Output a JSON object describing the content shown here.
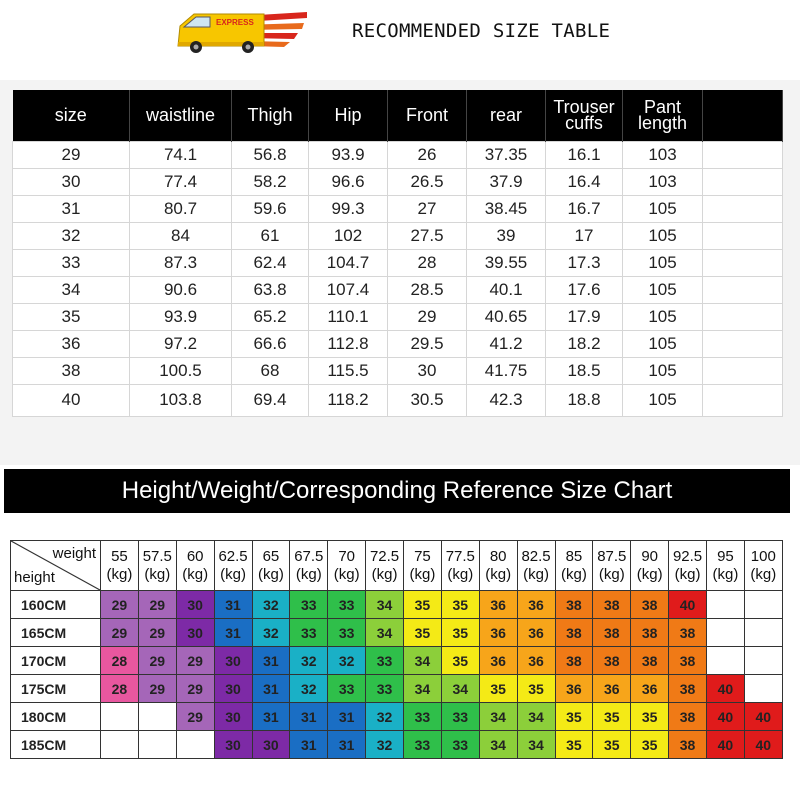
{
  "header": {
    "title": "RECOMMENDED SIZE TABLE",
    "truck_badge": "EXPRESS"
  },
  "size_table": {
    "columns": [
      "size",
      "waistline",
      "Thigh",
      "Hip",
      "Front",
      "rear",
      "Trouser cuffs",
      "Pant length"
    ],
    "rows": [
      [
        "29",
        "74.1",
        "56.8",
        "93.9",
        "26",
        "37.35",
        "16.1",
        "103"
      ],
      [
        "30",
        "77.4",
        "58.2",
        "96.6",
        "26.5",
        "37.9",
        "16.4",
        "103"
      ],
      [
        "31",
        "80.7",
        "59.6",
        "99.3",
        "27",
        "38.45",
        "16.7",
        "105"
      ],
      [
        "32",
        "84",
        "61",
        "102",
        "27.5",
        "39",
        "17",
        "105"
      ],
      [
        "33",
        "87.3",
        "62.4",
        "104.7",
        "28",
        "39.55",
        "17.3",
        "105"
      ],
      [
        "34",
        "90.6",
        "63.8",
        "107.4",
        "28.5",
        "40.1",
        "17.6",
        "105"
      ],
      [
        "35",
        "93.9",
        "65.2",
        "110.1",
        "29",
        "40.65",
        "17.9",
        "105"
      ],
      [
        "36",
        "97.2",
        "66.6",
        "112.8",
        "29.5",
        "41.2",
        "18.2",
        "105"
      ],
      [
        "38",
        "100.5",
        "68",
        "115.5",
        "30",
        "41.75",
        "18.5",
        "105"
      ],
      [
        "40",
        "103.8",
        "69.4",
        "118.2",
        "30.5",
        "42.3",
        "18.8",
        "105"
      ]
    ]
  },
  "banner": {
    "text": "Height/Weight/Corresponding Reference Size Chart"
  },
  "hw_chart": {
    "corner_weight": "weight",
    "corner_height": "height",
    "weights": [
      "55",
      "57.5",
      "60",
      "62.5",
      "65",
      "67.5",
      "70",
      "72.5",
      "75",
      "77.5",
      "80",
      "82.5",
      "85",
      "87.5",
      "90",
      "92.5",
      "95",
      "100"
    ],
    "unit": "(kg)",
    "heights": [
      "160CM",
      "165CM",
      "170CM",
      "175CM",
      "180CM",
      "185CM"
    ],
    "sizes": [
      [
        "29",
        "29",
        "30",
        "31",
        "32",
        "33",
        "33",
        "34",
        "35",
        "35",
        "36",
        "36",
        "38",
        "38",
        "38",
        "40",
        "",
        ""
      ],
      [
        "29",
        "29",
        "30",
        "31",
        "32",
        "33",
        "33",
        "34",
        "35",
        "35",
        "36",
        "36",
        "38",
        "38",
        "38",
        "38",
        "",
        ""
      ],
      [
        "28",
        "29",
        "29",
        "30",
        "31",
        "32",
        "32",
        "33",
        "34",
        "35",
        "36",
        "36",
        "38",
        "38",
        "38",
        "38",
        "",
        ""
      ],
      [
        "28",
        "29",
        "29",
        "30",
        "31",
        "32",
        "33",
        "33",
        "34",
        "34",
        "35",
        "35",
        "36",
        "36",
        "36",
        "38",
        "40",
        ""
      ],
      [
        "",
        "",
        "29",
        "30",
        "31",
        "31",
        "31",
        "32",
        "33",
        "33",
        "34",
        "34",
        "35",
        "35",
        "35",
        "38",
        "40",
        "40"
      ],
      [
        "",
        "",
        "",
        "30",
        "30",
        "31",
        "31",
        "32",
        "33",
        "33",
        "34",
        "34",
        "35",
        "35",
        "35",
        "38",
        "40",
        "40"
      ]
    ],
    "size_colors": {
      "28": "#e8579f",
      "29": "#a566b8",
      "30": "#7d2aa6",
      "31": "#1a6ec4",
      "32": "#1ab0c6",
      "33": "#2fbf4a",
      "34": "#8ccf3a",
      "35": "#f4ea16",
      "36": "#f7a51a",
      "38": "#f07a16",
      "40": "#e01b1b"
    }
  }
}
